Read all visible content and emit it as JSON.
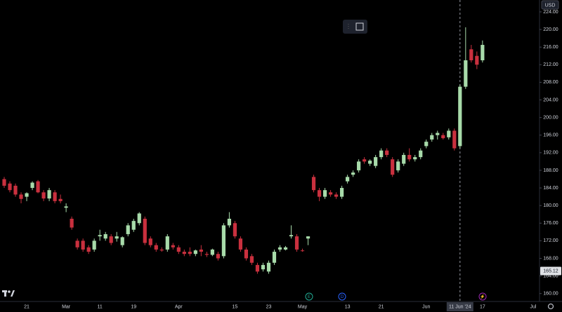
{
  "chart_data": {
    "type": "candlestick",
    "currency": "USD",
    "categories": [
      null,
      null,
      null,
      null,
      "21",
      null,
      null,
      null,
      null,
      null,
      null,
      "Mar",
      null,
      null,
      null,
      null,
      null,
      "11",
      null,
      null,
      null,
      null,
      null,
      "19",
      null,
      null,
      null,
      null,
      null,
      null,
      null,
      "Apr",
      null,
      null,
      null,
      null,
      null,
      null,
      null,
      null,
      null,
      "15",
      null,
      null,
      null,
      null,
      null,
      "23",
      null,
      null,
      null,
      null,
      null,
      "May",
      null,
      null,
      null,
      null,
      null,
      null,
      null,
      "13",
      null,
      null,
      null,
      null,
      null,
      "21",
      null,
      null,
      null,
      null,
      null,
      null,
      null,
      "Jun",
      null,
      null,
      null,
      null,
      null,
      "11 Jun '24",
      null,
      null,
      null,
      "17",
      null,
      null,
      null,
      null,
      null,
      null,
      null,
      null,
      "Jul"
    ],
    "open": [
      186,
      185,
      184.5,
      182.5,
      182,
      184,
      185.5,
      183,
      181.6,
      183,
      181.5,
      179.5,
      177,
      172,
      172,
      170.5,
      170,
      173,
      172.5,
      173,
      172.5,
      171,
      173.5,
      174.5,
      176,
      177,
      172.5,
      171,
      170,
      170,
      171,
      170.5,
      169.5,
      169.5,
      169,
      170,
      169,
      168.8,
      169,
      168.5,
      175.5,
      176,
      172.5,
      170,
      168.5,
      166.5,
      165.5,
      165,
      167,
      170,
      170,
      173,
      173,
      169.8,
      172.5,
      186.5,
      183.5,
      182,
      183,
      182.5,
      182,
      185.5,
      187,
      188,
      190.5,
      189.5,
      189,
      191,
      192.5,
      190.5,
      188,
      189.5,
      191.5,
      190.5,
      191,
      193.5,
      195,
      196,
      196,
      195.5,
      197,
      193.5,
      207,
      215.5,
      214,
      213,
      null,
      null,
      null,
      null,
      null,
      null,
      null,
      null,
      null
    ],
    "high": [
      186.5,
      185.5,
      185,
      183,
      183,
      185.5,
      185.8,
      183.5,
      184,
      183.5,
      182.5,
      180.5,
      177.5,
      172.5,
      172.5,
      171,
      172.5,
      174.5,
      174,
      173.5,
      174,
      173,
      176,
      177,
      178.5,
      177.5,
      173,
      171.5,
      170.5,
      173.5,
      171.5,
      171,
      170,
      170.5,
      170,
      171,
      169.5,
      170.2,
      169.5,
      176,
      178.5,
      176.5,
      173,
      170.5,
      169,
      167,
      167,
      167.5,
      170,
      171,
      170.8,
      175.5,
      173.5,
      170.2,
      173,
      187,
      184,
      184,
      183.5,
      183,
      184.5,
      187,
      188,
      190.5,
      191,
      190.5,
      191.5,
      193,
      193,
      191,
      190.5,
      192,
      193,
      191.5,
      193,
      195,
      196.5,
      197,
      196.5,
      197.5,
      197.5,
      207.5,
      220.5,
      216.5,
      215,
      217.5,
      null,
      null,
      null,
      null,
      null,
      null,
      null,
      null,
      null
    ],
    "low": [
      184,
      183,
      182,
      180.5,
      181,
      183.5,
      182.8,
      181,
      181,
      180.5,
      180.5,
      178.5,
      174.5,
      170,
      169.5,
      169,
      169.5,
      172,
      172,
      171,
      171.8,
      170.5,
      173,
      174,
      175.5,
      171,
      170.5,
      169.5,
      169.5,
      169.5,
      170,
      169,
      168.5,
      168.5,
      168.5,
      168.5,
      168.3,
      168.5,
      167.5,
      168,
      175,
      172.5,
      169.5,
      167.5,
      166.5,
      164.5,
      165,
      164.5,
      166.5,
      169.5,
      169.8,
      172.5,
      169.5,
      169.5,
      171,
      183,
      181,
      181.5,
      182,
      181.5,
      181.5,
      185,
      186.5,
      187.5,
      189.5,
      189,
      188.5,
      190.5,
      191,
      186.5,
      187.5,
      189,
      190,
      190,
      190.5,
      193,
      194.5,
      195,
      195,
      195,
      192.5,
      193,
      206.5,
      212.5,
      211,
      212.5,
      null,
      null,
      null,
      null,
      null,
      null,
      null,
      null,
      null
    ],
    "close": [
      184.5,
      183.5,
      182.5,
      181.5,
      182.8,
      185.2,
      183,
      181.6,
      183.5,
      181,
      181,
      179.8,
      175,
      170.5,
      170,
      169.5,
      172,
      173.3,
      173.5,
      171.5,
      173,
      172.8,
      175.5,
      176.5,
      178.2,
      171.5,
      171,
      170,
      169.8,
      173,
      170.5,
      169.5,
      169,
      169,
      169.8,
      169.5,
      168.8,
      170,
      168,
      175.5,
      177,
      173,
      170,
      168,
      167,
      165,
      166.5,
      167,
      169.5,
      170.5,
      170.5,
      173.3,
      170,
      169.7,
      173,
      183.5,
      182,
      183.5,
      182.5,
      182,
      184,
      186.5,
      187.5,
      190,
      190,
      190.2,
      191,
      192.5,
      191.5,
      187,
      190,
      191.5,
      190.5,
      191,
      192.5,
      194.5,
      196,
      196.5,
      195.3,
      197,
      193,
      207,
      213,
      213,
      212,
      216.5,
      null,
      null,
      null,
      null,
      null,
      null,
      null,
      null,
      null
    ],
    "up_color": "#a8dbaa",
    "down_color": "#c9303e",
    "ylim": [
      158.2,
      226.7
    ],
    "yticks": [
      {
        "value": 160,
        "label": "160.00"
      },
      {
        "value": 164,
        "label": "164.00"
      },
      {
        "value": 168,
        "label": "168.00"
      },
      {
        "value": 172,
        "label": "172.00"
      },
      {
        "value": 176,
        "label": "176.00"
      },
      {
        "value": 180,
        "label": "180.00"
      },
      {
        "value": 184,
        "label": "184.00"
      },
      {
        "value": 188,
        "label": "188.00"
      },
      {
        "value": 192,
        "label": "192.00"
      },
      {
        "value": 196,
        "label": "196.00"
      },
      {
        "value": 200,
        "label": "200.00"
      },
      {
        "value": 204,
        "label": "204.00"
      },
      {
        "value": 208,
        "label": "208.00"
      },
      {
        "value": 212,
        "label": "212.00"
      },
      {
        "value": 216,
        "label": "216.00"
      },
      {
        "value": 220,
        "label": "220.00"
      },
      {
        "value": 224,
        "label": "224.00"
      }
    ],
    "price_marker": 165.12,
    "events": [
      "E",
      "D",
      "⚡"
    ],
    "grid": false
  }
}
